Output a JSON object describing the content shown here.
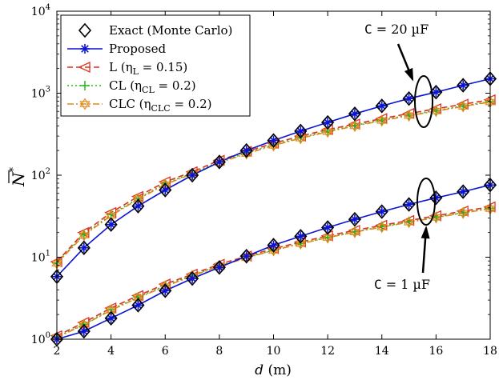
{
  "chart_data": {
    "type": "line",
    "title": "",
    "xlabel": "d (m)",
    "ylabel": "N̄*",
    "xscale": "linear",
    "yscale": "log",
    "xlim": [
      2,
      18
    ],
    "ylim": [
      1,
      10000
    ],
    "x_ticks": [
      2,
      4,
      6,
      8,
      10,
      12,
      14,
      16,
      18
    ],
    "x_tick_labels": [
      "2",
      "4",
      "6",
      "8",
      "10",
      "12",
      "14",
      "16",
      "18"
    ],
    "y_ticks": [
      1,
      10,
      100,
      1000,
      10000
    ],
    "y_tick_labels": [
      {
        "base": "10",
        "exp": "0"
      },
      {
        "base": "10",
        "exp": "1"
      },
      {
        "base": "10",
        "exp": "2"
      },
      {
        "base": "10",
        "exp": "3"
      },
      {
        "base": "10",
        "exp": "4"
      }
    ],
    "grid": false,
    "legend_position": "top-left",
    "x": [
      2,
      3,
      4,
      5,
      6,
      7,
      8,
      9,
      10,
      11,
      12,
      13,
      14,
      15,
      16,
      17,
      18
    ],
    "groups": [
      {
        "name": "C = 20 µF",
        "series": [
          {
            "name": "Exact (Monte Carlo)",
            "values": [
              5.8,
              13,
              25,
              42,
              66,
              100,
              145,
              200,
              265,
              345,
              440,
              560,
              700,
              860,
              1030,
              1250,
              1500
            ]
          },
          {
            "name": "Proposed",
            "values": [
              5.8,
              13,
              25,
              42,
              66,
              100,
              145,
              200,
              265,
              345,
              440,
              560,
              700,
              860,
              1030,
              1250,
              1500
            ]
          },
          {
            "name": "L (ηL = 0.15)",
            "values": [
              8.8,
              20,
              35,
              55,
              83,
              110,
              152,
              195,
              245,
              300,
              360,
              420,
              490,
              565,
              645,
              735,
              830
            ]
          },
          {
            "name": "CL (ηCL = 0.2)",
            "values": [
              8.5,
              19,
              33,
              52,
              79,
              106,
              145,
              187,
              235,
              288,
              345,
              405,
              470,
              540,
              615,
              700,
              790
            ]
          },
          {
            "name": "CLC (ηCLC = 0.2)",
            "values": [
              8.4,
              18.5,
              32,
              51,
              77,
              104,
              142,
              183,
              230,
              282,
              338,
              398,
              462,
              532,
              605,
              690,
              780
            ]
          }
        ]
      },
      {
        "name": "C = 1 µF",
        "series": [
          {
            "name": "Exact (Monte Carlo)",
            "values": [
              1.0,
              1.25,
              1.8,
              2.6,
              3.9,
              5.5,
              7.5,
              10.3,
              14,
              18,
              23,
              29,
              36,
              44,
              53,
              63,
              76
            ]
          },
          {
            "name": "Proposed",
            "values": [
              1.0,
              1.25,
              1.8,
              2.6,
              3.9,
              5.5,
              7.5,
              10.3,
              14,
              18,
              23,
              29,
              36,
              44,
              53,
              63,
              76
            ]
          },
          {
            "name": "L (ηL = 0.15)",
            "values": [
              1.1,
              1.6,
              2.4,
              3.4,
              4.7,
              6.2,
              8.2,
              10.3,
              12.7,
              15.3,
              18.2,
              21.2,
              24.5,
              28,
              32,
              36.5,
              41
            ]
          },
          {
            "name": "CL (ηCL = 0.2)",
            "values": [
              1.07,
              1.52,
              2.3,
              3.25,
              4.5,
              6.0,
              7.9,
              9.9,
              12.2,
              14.7,
              17.5,
              20.4,
              23.6,
              27,
              30.8,
              35,
              39.5
            ]
          },
          {
            "name": "CLC (ηCLC = 0.2)",
            "values": [
              1.05,
              1.5,
              2.25,
              3.2,
              4.4,
              5.9,
              7.8,
              9.8,
              12.1,
              14.6,
              17.3,
              20.2,
              23.3,
              26.7,
              30.5,
              34.6,
              39
            ]
          }
        ]
      }
    ],
    "legend": [
      {
        "label": "Exact (Monte Carlo)",
        "color": "#000000",
        "marker": "diamond",
        "line": "none"
      },
      {
        "label": "Proposed",
        "color": "#0a14d2",
        "marker": "asterisk",
        "line": "solid"
      },
      {
        "label": "L (ηL = 0.15)",
        "color": "#e03020",
        "marker": "triangle-left",
        "line": "dashed"
      },
      {
        "label": "CL (ηCL = 0.2)",
        "color": "#2db51f",
        "marker": "plus",
        "line": "dotted"
      },
      {
        "label": "CLC (ηCLC = 0.2)",
        "color": "#e08a1a",
        "marker": "hexagram",
        "line": "dashdot"
      }
    ],
    "annotations": [
      {
        "text": "C = 20 µF",
        "points_to": "upper group at d ≈ 15.5"
      },
      {
        "text": "C = 1 µF",
        "points_to": "lower group at d ≈ 15.5"
      }
    ]
  },
  "legend_labels": [
    {
      "main": "Exact (Monte Carlo)",
      "sub": "",
      "post": ""
    },
    {
      "main": "Proposed",
      "sub": "",
      "post": ""
    },
    {
      "main": "L (η",
      "sub": "L",
      "post": " = 0.15)"
    },
    {
      "main": "CL (η",
      "sub": "CL",
      "post": " = 0.2)"
    },
    {
      "main": "CLC (η",
      "sub": "CLC",
      "post": " = 0.2)"
    }
  ],
  "annotation_labels": {
    "upper_c": "C",
    "upper_rest": " = 20 µF",
    "lower_c": "C",
    "lower_rest": " = 1 µF"
  },
  "axis_labels": {
    "x_var": "d",
    "x_unit": " (m)",
    "y_var": "N",
    "y_star": "*"
  }
}
